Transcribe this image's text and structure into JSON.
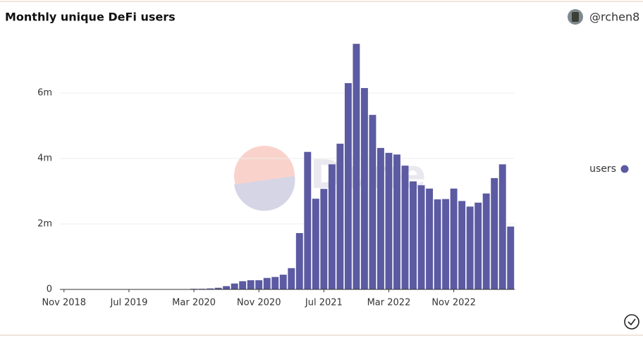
{
  "header": {
    "title": "Monthly unique DeFi users",
    "author": "@rchen8"
  },
  "watermark": "Dune",
  "chart_data": {
    "type": "bar",
    "categories": [
      "Nov 2018",
      null,
      null,
      null,
      null,
      null,
      null,
      null,
      "Jul 2019",
      null,
      null,
      null,
      null,
      null,
      null,
      null,
      "Mar 2020",
      null,
      null,
      null,
      null,
      null,
      null,
      null,
      "Nov 2020",
      null,
      null,
      null,
      null,
      null,
      null,
      null,
      "Jul 2021",
      null,
      null,
      null,
      null,
      null,
      null,
      null,
      "Mar 2022",
      null,
      null,
      null,
      null,
      null,
      null,
      null,
      "Nov 2022",
      null,
      null,
      null,
      null,
      null,
      null,
      null
    ],
    "series": [
      {
        "name": "users",
        "color": "#5b5aa2",
        "values": [
          0,
          0,
          0,
          0,
          0,
          0,
          0,
          0,
          0,
          0,
          0,
          0,
          0,
          0,
          0.01,
          0.01,
          0.02,
          0.02,
          0.03,
          0.05,
          0.1,
          0.18,
          0.25,
          0.28,
          0.28,
          0.35,
          0.38,
          0.45,
          0.65,
          1.72,
          4.2,
          2.77,
          3.07,
          3.82,
          4.45,
          6.3,
          7.5,
          6.15,
          5.33,
          4.32,
          4.17,
          4.12,
          3.78,
          3.3,
          3.18,
          3.08,
          2.75,
          2.76,
          3.08,
          2.7,
          2.53,
          2.65,
          2.93,
          3.4,
          3.82,
          1.92
        ]
      }
    ],
    "ylim": [
      0,
      8
    ],
    "yticks": [
      0,
      {
        "value": 2,
        "label": "2m"
      },
      {
        "value": 4,
        "label": "4m"
      },
      {
        "value": 6,
        "label": "6m"
      }
    ],
    "grid": true,
    "legend": "right"
  }
}
